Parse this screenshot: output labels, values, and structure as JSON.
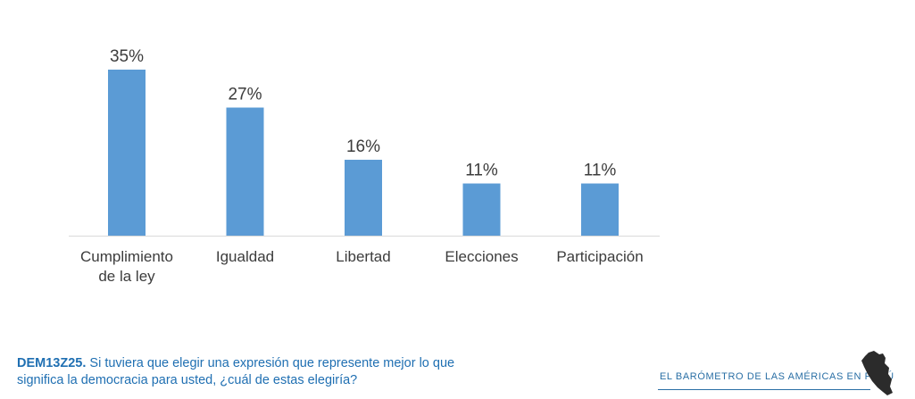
{
  "chart_data": {
    "type": "bar",
    "categories": [
      [
        "Cumplimiento",
        "de la ley"
      ],
      [
        "Igualdad"
      ],
      [
        "Libertad"
      ],
      [
        "Elecciones"
      ],
      [
        "Participación"
      ]
    ],
    "values": [
      35,
      27,
      16,
      11,
      11
    ],
    "value_labels": [
      "35%",
      "27%",
      "16%",
      "11%",
      "11%"
    ],
    "ylim": [
      0,
      35
    ],
    "bar_color": "#5b9bd5",
    "axis_color": "#d9d9d9",
    "grid": false,
    "legend": "none"
  },
  "question": {
    "code": "DEM13Z25.",
    "text": "Si tuviera que elegir una expresión que represente mejor lo que significa la democracia para usted, ¿cuál de estas elegiría?"
  },
  "brand": {
    "text": "EL  BARÓMETRO DE LAS AMÉRICAS  EN PERÚ",
    "logo_icon": "peru-map-icon"
  }
}
